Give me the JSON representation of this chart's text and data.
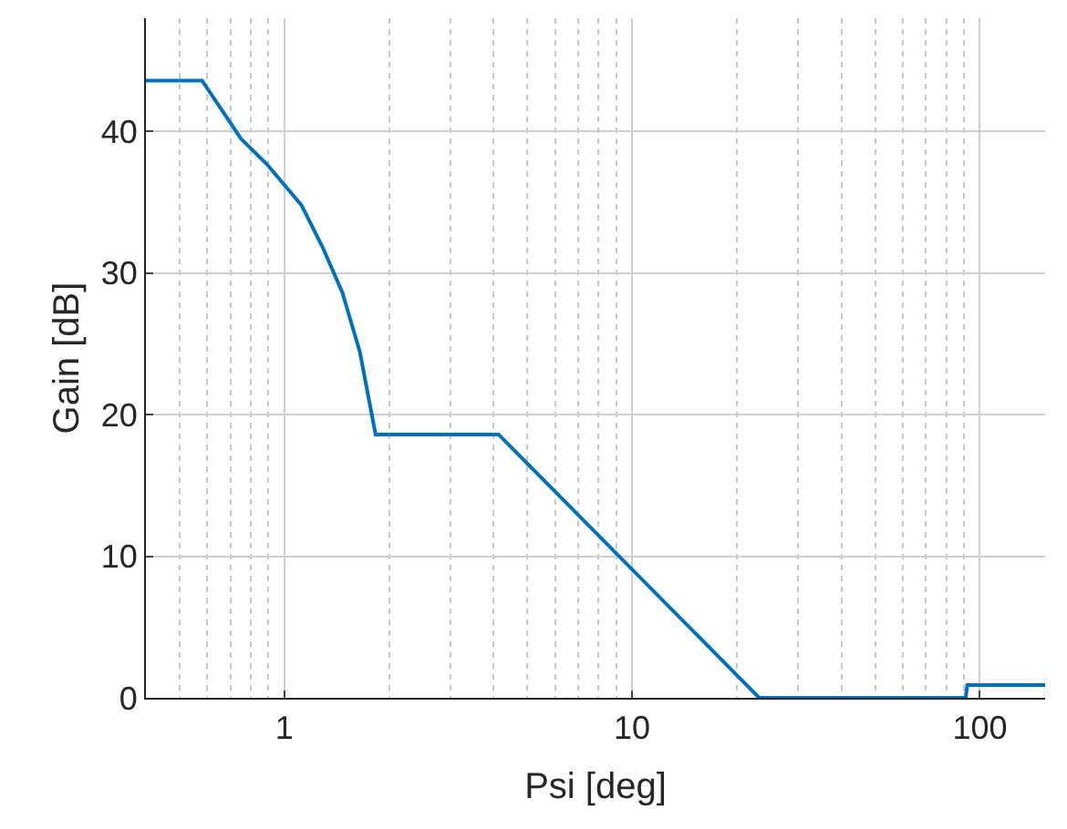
{
  "chart_data": {
    "type": "line",
    "xlabel": "Psi [deg]",
    "ylabel": "Gain [dB]",
    "x": [
      0.4,
      0.58,
      0.75,
      0.89,
      1.12,
      1.29,
      1.47,
      1.65,
      1.83,
      4.13,
      23.2,
      91.0,
      92.0,
      154
    ],
    "series": [
      {
        "color": "#0072bd",
        "values": [
          43.6,
          43.6,
          39.5,
          37.7,
          34.8,
          31.8,
          28.6,
          24.4,
          18.6,
          18.6,
          0,
          0,
          0.9,
          0.9
        ]
      }
    ],
    "log": "x",
    "xlim": [
      0.4,
      154
    ],
    "xticks": [
      1,
      10,
      100
    ],
    "ylim": [
      0,
      48
    ],
    "yticks": [
      0,
      10,
      20,
      30,
      40
    ],
    "grid": true,
    "line_style": "solid",
    "marker": "none"
  }
}
